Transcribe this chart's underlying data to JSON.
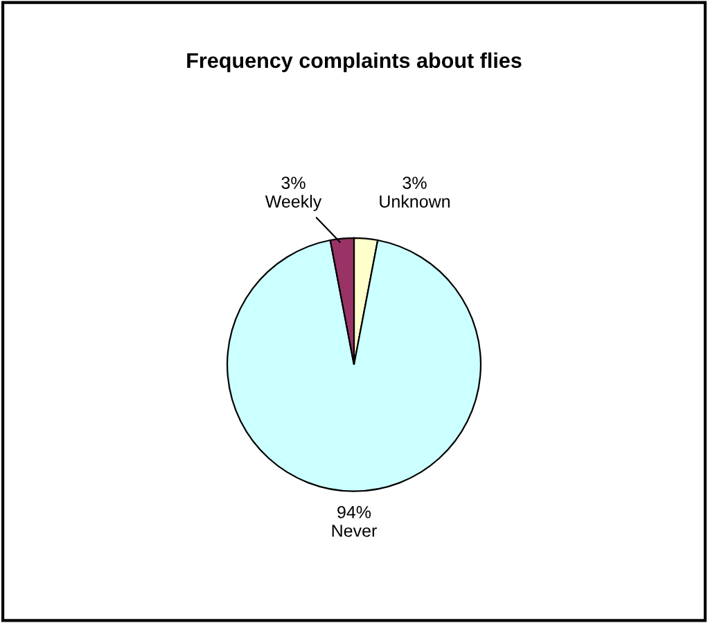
{
  "chart_data": {
    "type": "pie",
    "title": "Frequency complaints about flies",
    "categories": [
      "Unknown",
      "Never",
      "Weekly"
    ],
    "values": [
      3,
      94,
      3
    ],
    "value_labels": [
      "3%",
      "94%",
      "3%"
    ],
    "colors": [
      "#ffffcc",
      "#ccffff",
      "#993366"
    ],
    "legend": false
  }
}
